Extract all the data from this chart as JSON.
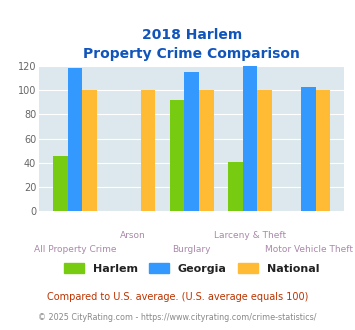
{
  "title_line1": "2018 Harlem",
  "title_line2": "Property Crime Comparison",
  "categories": [
    "All Property Crime",
    "Arson",
    "Burglary",
    "Larceny & Theft",
    "Motor Vehicle Theft"
  ],
  "harlem": [
    46,
    0,
    92,
    41,
    0
  ],
  "georgia": [
    118,
    0,
    115,
    120,
    103
  ],
  "national": [
    100,
    100,
    100,
    100,
    100
  ],
  "harlem_color": "#77cc11",
  "georgia_color": "#3399ff",
  "national_color": "#ffbb33",
  "bg_color": "#dde8ee",
  "title_color": "#1155bb",
  "xlabel_color": "#aa88aa",
  "ylabel_max": 120,
  "ylabel_ticks": [
    0,
    20,
    40,
    60,
    80,
    100,
    120
  ],
  "row1_indices": [
    1,
    3
  ],
  "row1_labels": [
    "Arson",
    "Larceny & Theft"
  ],
  "row2_indices": [
    0,
    2,
    4
  ],
  "row2_labels": [
    "All Property Crime",
    "Burglary",
    "Motor Vehicle Theft"
  ],
  "footnote1": "Compared to U.S. average. (U.S. average equals 100)",
  "footnote2": "© 2025 CityRating.com - https://www.cityrating.com/crime-statistics/",
  "legend_labels": [
    "Harlem",
    "Georgia",
    "National"
  ],
  "bar_width": 0.25
}
